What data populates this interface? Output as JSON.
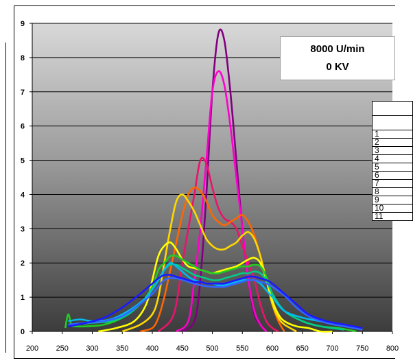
{
  "annotation": {
    "line1": "8000 U/min",
    "line2": "0 KV"
  },
  "legend": {
    "rows": [
      "1",
      "2",
      "3",
      "4",
      "5",
      "6",
      "7",
      "8",
      "9",
      "10",
      "11"
    ]
  },
  "chart_data": {
    "type": "line",
    "xlim": [
      200,
      800
    ],
    "ylim": [
      0,
      9
    ],
    "x_ticks": [
      "200",
      "250",
      "300",
      "350",
      "400",
      "450",
      "500",
      "550",
      "600",
      "650",
      "700",
      "750",
      "800"
    ],
    "y_ticks": [
      "0",
      "1",
      "2",
      "3",
      "4",
      "5",
      "6",
      "7",
      "8",
      "9"
    ],
    "grid": "horizontal",
    "background": "vertical gradient from light gray (top) to dark gray (bottom)",
    "series": [
      {
        "color": "#800080",
        "x": [
          450,
          470,
          480,
          490,
          500,
          510,
          520,
          530,
          540,
          550,
          560,
          570,
          580,
          590
        ],
        "y": [
          0,
          0.3,
          1.5,
          4,
          7,
          8.7,
          8.5,
          7,
          5,
          3,
          1.5,
          0.5,
          0.2,
          0
        ]
      },
      {
        "color": "#ff00cc",
        "x": [
          440,
          460,
          470,
          480,
          490,
          500,
          510,
          520,
          530,
          540,
          550,
          560,
          570,
          580,
          590
        ],
        "y": [
          0,
          0.3,
          1.5,
          3,
          5,
          7,
          7.6,
          7.2,
          6,
          4.5,
          3,
          1.5,
          0.6,
          0.2,
          0
        ]
      },
      {
        "color": "#e8156b",
        "x": [
          410,
          430,
          440,
          450,
          460,
          470,
          480,
          490,
          500,
          510,
          520,
          530,
          540,
          550,
          560,
          570,
          580,
          590,
          600,
          610
        ],
        "y": [
          0,
          0.3,
          0.8,
          2,
          3,
          4,
          5,
          4.9,
          4.2,
          3.6,
          3.3,
          3.2,
          3,
          2.5,
          2,
          1.5,
          0.8,
          0.3,
          0.1,
          0
        ]
      },
      {
        "color": "#ff6600",
        "x": [
          380,
          400,
          410,
          420,
          430,
          440,
          450,
          460,
          470,
          480,
          490,
          500,
          510,
          520,
          530,
          540,
          550,
          560,
          570,
          580,
          590,
          600,
          610,
          620
        ],
        "y": [
          0,
          0.1,
          0.4,
          1,
          1.8,
          2.6,
          3.4,
          4,
          4.2,
          4.1,
          3.8,
          3.4,
          3.2,
          3.1,
          3.2,
          3.3,
          3.4,
          3.2,
          2.8,
          2.2,
          1.5,
          0.8,
          0.3,
          0
        ]
      },
      {
        "color": "#ffd700",
        "x": [
          350,
          380,
          400,
          410,
          420,
          430,
          440,
          450,
          460,
          470,
          480,
          490,
          500,
          510,
          520,
          530,
          540,
          550,
          560,
          570,
          580,
          590,
          600,
          610,
          620,
          640
        ],
        "y": [
          0,
          0.2,
          0.5,
          1,
          2,
          3,
          3.8,
          4,
          3.8,
          3.5,
          3.1,
          2.7,
          2.5,
          2.4,
          2.4,
          2.5,
          2.6,
          2.8,
          2.9,
          2.7,
          2.2,
          1.5,
          0.8,
          0.4,
          0.2,
          0
        ]
      },
      {
        "color": "#ffff00",
        "x": [
          310,
          340,
          370,
          390,
          400,
          410,
          420,
          430,
          440,
          450,
          460,
          470,
          480,
          490,
          500,
          510,
          520,
          530,
          540,
          550,
          560,
          570,
          580,
          590,
          600,
          610,
          620,
          640,
          660,
          680,
          700
        ],
        "y": [
          0,
          0.1,
          0.3,
          0.8,
          1.5,
          2.2,
          2.5,
          2.6,
          2.4,
          2.1,
          1.9,
          1.85,
          1.8,
          1.75,
          1.7,
          1.75,
          1.8,
          1.85,
          1.9,
          2,
          2.1,
          2.15,
          2,
          1.5,
          0.9,
          0.5,
          0.3,
          0.15,
          0.1,
          0,
          0
        ]
      },
      {
        "color": "#22cc22",
        "x": [
          255,
          260,
          265,
          270,
          290,
          320,
          350,
          380,
          400,
          410,
          420,
          430,
          440,
          450,
          460,
          470,
          480,
          490,
          500,
          510,
          520,
          530,
          540,
          550,
          560,
          570,
          580,
          590,
          600,
          620,
          650,
          680,
          710,
          740
        ],
        "y": [
          0.1,
          0.5,
          0.2,
          0.15,
          0.15,
          0.2,
          0.4,
          0.8,
          1.3,
          1.8,
          2,
          2.2,
          2.2,
          2.1,
          2,
          1.9,
          1.8,
          1.75,
          1.7,
          1.7,
          1.75,
          1.8,
          1.85,
          1.9,
          1.9,
          1.95,
          1.9,
          1.6,
          1.1,
          0.6,
          0.3,
          0.15,
          0.1,
          0
        ]
      },
      {
        "color": "#00cc88",
        "x": [
          270,
          300,
          330,
          360,
          390,
          410,
          420,
          430,
          440,
          450,
          460,
          470,
          480,
          490,
          500,
          510,
          520,
          530,
          540,
          550,
          560,
          570,
          580,
          590,
          600,
          620,
          650,
          680,
          720
        ],
        "y": [
          0.2,
          0.25,
          0.3,
          0.5,
          1,
          1.5,
          1.8,
          1.95,
          1.95,
          1.85,
          1.75,
          1.65,
          1.6,
          1.55,
          1.5,
          1.5,
          1.55,
          1.6,
          1.65,
          1.7,
          1.7,
          1.75,
          1.7,
          1.5,
          1.1,
          0.6,
          0.3,
          0.15,
          0.05
        ]
      },
      {
        "color": "#00bbee",
        "x": [
          260,
          280,
          300,
          330,
          360,
          390,
          410,
          420,
          430,
          440,
          450,
          460,
          470,
          480,
          490,
          500,
          510,
          520,
          530,
          540,
          550,
          560,
          570,
          580,
          590,
          600,
          620,
          650,
          680,
          710,
          740
        ],
        "y": [
          0.3,
          0.35,
          0.3,
          0.35,
          0.6,
          1,
          1.5,
          1.8,
          2,
          1.9,
          1.75,
          1.6,
          1.5,
          1.45,
          1.4,
          1.4,
          1.35,
          1.35,
          1.4,
          1.45,
          1.5,
          1.5,
          1.5,
          1.4,
          1.2,
          1,
          0.6,
          0.4,
          0.3,
          0.2,
          0.1
        ]
      },
      {
        "color": "#3366ff",
        "x": [
          260,
          290,
          320,
          350,
          380,
          400,
          420,
          440,
          460,
          480,
          500,
          510,
          520,
          530,
          540,
          550,
          560,
          570,
          580,
          590,
          600,
          620,
          640,
          660,
          690,
          720,
          750
        ],
        "y": [
          0.2,
          0.25,
          0.3,
          0.45,
          0.8,
          1.1,
          1.5,
          1.55,
          1.45,
          1.35,
          1.3,
          1.3,
          1.3,
          1.35,
          1.4,
          1.45,
          1.5,
          1.5,
          1.45,
          1.4,
          1.3,
          1.05,
          0.7,
          0.45,
          0.25,
          0.15,
          0.05
        ]
      },
      {
        "color": "#1a1aff",
        "x": [
          260,
          290,
          320,
          350,
          380,
          400,
          410,
          420,
          430,
          440,
          450,
          460,
          470,
          480,
          490,
          500,
          510,
          520,
          530,
          540,
          550,
          560,
          570,
          580,
          590,
          600,
          620,
          640,
          660,
          690,
          720,
          750
        ],
        "y": [
          0.15,
          0.25,
          0.4,
          0.7,
          1.1,
          1.4,
          1.55,
          1.65,
          1.65,
          1.6,
          1.55,
          1.5,
          1.45,
          1.45,
          1.4,
          1.4,
          1.4,
          1.4,
          1.45,
          1.5,
          1.55,
          1.6,
          1.6,
          1.55,
          1.5,
          1.4,
          1.1,
          0.8,
          0.5,
          0.3,
          0.2,
          0.1
        ]
      }
    ]
  }
}
